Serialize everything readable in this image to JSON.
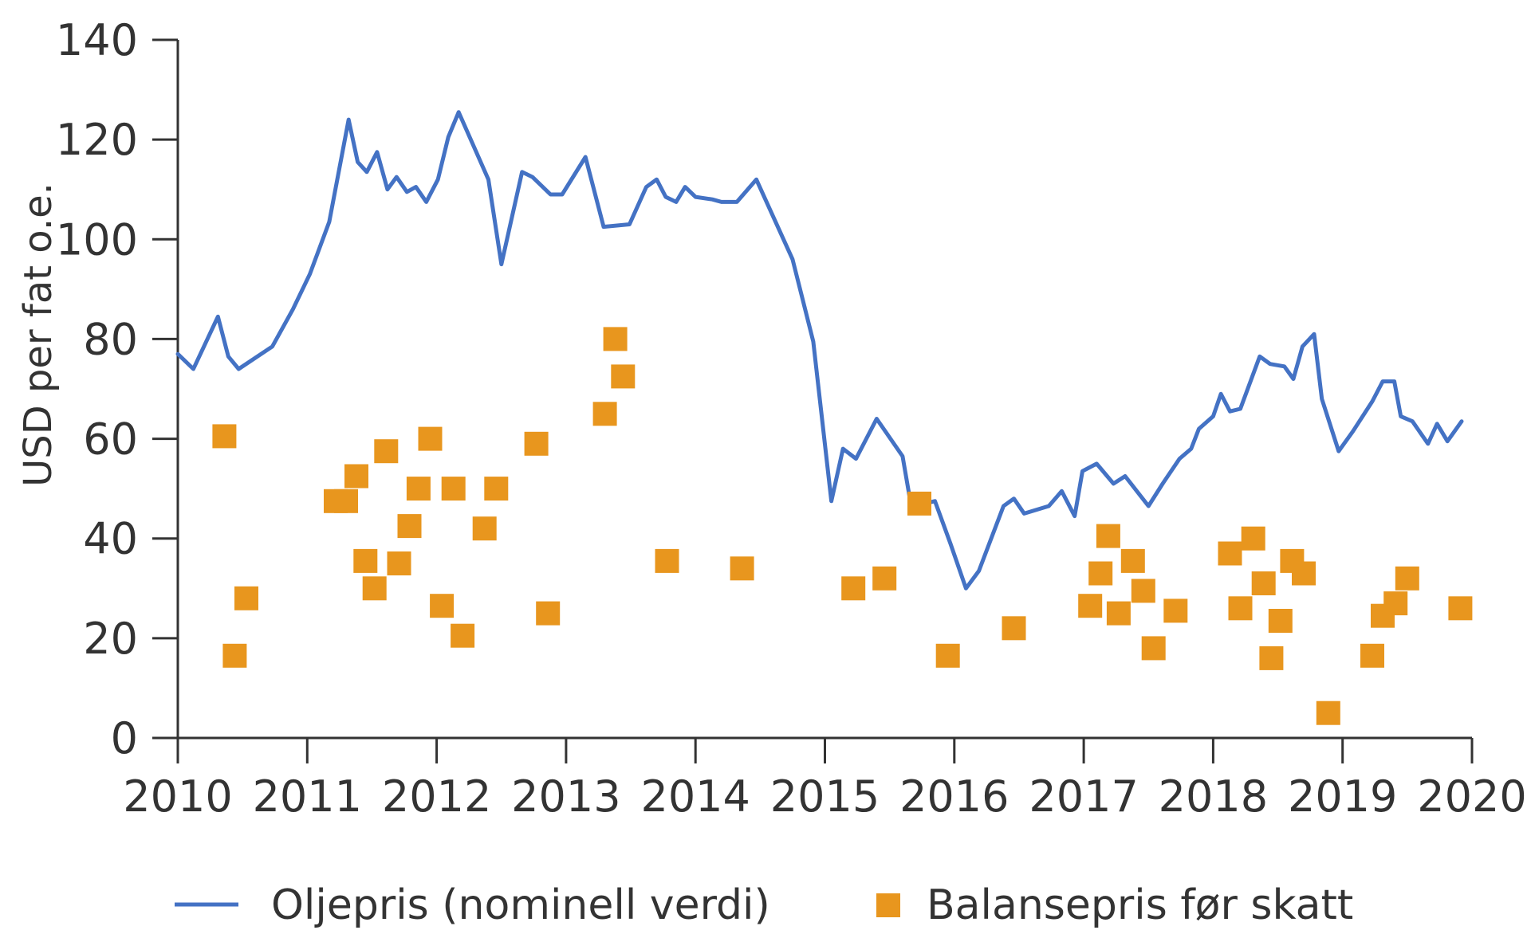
{
  "chart_data": {
    "type": "line+scatter",
    "title": "",
    "xlabel": "",
    "ylabel": "USD per fat o.e.",
    "xlim": [
      2010,
      2020
    ],
    "ylim": [
      0,
      140
    ],
    "grid": false,
    "legend_position": "bottom",
    "x_ticks": [
      "2010",
      "2011",
      "2012",
      "2013",
      "2014",
      "2015",
      "2016",
      "2017",
      "2018",
      "2019",
      "2020"
    ],
    "y_ticks": [
      "0",
      "20",
      "40",
      "60",
      "80",
      "100",
      "120",
      "140"
    ],
    "colors": {
      "line": "#4472c4",
      "markers": "#e8961e",
      "axis": "#333333"
    },
    "series": [
      {
        "name": "Oljepris (nominell verdi)",
        "type": "line",
        "points": [
          [
            2010.0,
            77
          ],
          [
            2010.12,
            74
          ],
          [
            2010.31,
            84.5
          ],
          [
            2010.39,
            76.5
          ],
          [
            2010.47,
            74
          ],
          [
            2010.73,
            78.5
          ],
          [
            2010.89,
            86
          ],
          [
            2011.02,
            93
          ],
          [
            2011.17,
            103.5
          ],
          [
            2011.32,
            124
          ],
          [
            2011.39,
            115.5
          ],
          [
            2011.46,
            113.5
          ],
          [
            2011.54,
            117.5
          ],
          [
            2011.62,
            110
          ],
          [
            2011.69,
            112.5
          ],
          [
            2011.77,
            109.5
          ],
          [
            2011.84,
            110.5
          ],
          [
            2011.92,
            107.5
          ],
          [
            2012.01,
            112
          ],
          [
            2012.09,
            120.5
          ],
          [
            2012.17,
            125.5
          ],
          [
            2012.4,
            112
          ],
          [
            2012.5,
            95
          ],
          [
            2012.66,
            113.5
          ],
          [
            2012.74,
            112.5
          ],
          [
            2012.88,
            109
          ],
          [
            2012.97,
            109
          ],
          [
            2013.15,
            116.5
          ],
          [
            2013.29,
            102.5
          ],
          [
            2013.49,
            103
          ],
          [
            2013.62,
            110.5
          ],
          [
            2013.7,
            112
          ],
          [
            2013.77,
            108.5
          ],
          [
            2013.85,
            107.5
          ],
          [
            2013.92,
            110.5
          ],
          [
            2014.0,
            108.5
          ],
          [
            2014.13,
            108
          ],
          [
            2014.2,
            107.5
          ],
          [
            2014.32,
            107.5
          ],
          [
            2014.47,
            112
          ],
          [
            2014.75,
            96
          ],
          [
            2014.91,
            79.5
          ],
          [
            2015.05,
            47.5
          ],
          [
            2015.14,
            58
          ],
          [
            2015.24,
            56
          ],
          [
            2015.4,
            64
          ],
          [
            2015.6,
            56.5
          ],
          [
            2015.66,
            47.5
          ],
          [
            2015.77,
            47
          ],
          [
            2015.85,
            47.5
          ],
          [
            2015.97,
            39
          ],
          [
            2016.09,
            30
          ],
          [
            2016.19,
            33.5
          ],
          [
            2016.38,
            46.5
          ],
          [
            2016.46,
            48
          ],
          [
            2016.54,
            45
          ],
          [
            2016.73,
            46.5
          ],
          [
            2016.83,
            49.5
          ],
          [
            2016.93,
            44.5
          ],
          [
            2016.99,
            53.5
          ],
          [
            2017.1,
            55
          ],
          [
            2017.23,
            51
          ],
          [
            2017.32,
            52.5
          ],
          [
            2017.5,
            46.5
          ],
          [
            2017.61,
            51
          ],
          [
            2017.74,
            56
          ],
          [
            2017.83,
            58
          ],
          [
            2017.89,
            62
          ],
          [
            2018.0,
            64.5
          ],
          [
            2018.06,
            69
          ],
          [
            2018.13,
            65.5
          ],
          [
            2018.21,
            66
          ],
          [
            2018.36,
            76.5
          ],
          [
            2018.44,
            75
          ],
          [
            2018.55,
            74.5
          ],
          [
            2018.62,
            72
          ],
          [
            2018.69,
            78.5
          ],
          [
            2018.78,
            81
          ],
          [
            2018.84,
            68
          ],
          [
            2018.97,
            57.5
          ],
          [
            2019.08,
            61.5
          ],
          [
            2019.23,
            67.5
          ],
          [
            2019.31,
            71.5
          ],
          [
            2019.4,
            71.5
          ],
          [
            2019.45,
            64.5
          ],
          [
            2019.54,
            63.5
          ],
          [
            2019.66,
            59
          ],
          [
            2019.73,
            63
          ],
          [
            2019.81,
            59.5
          ],
          [
            2019.92,
            63.5
          ]
        ]
      },
      {
        "name": "Balansepris før skatt",
        "type": "scatter",
        "points": [
          [
            2010.36,
            60.5
          ],
          [
            2010.44,
            16.5
          ],
          [
            2010.53,
            28
          ],
          [
            2011.22,
            47.5
          ],
          [
            2011.3,
            47.5
          ],
          [
            2011.38,
            52.5
          ],
          [
            2011.45,
            35.5
          ],
          [
            2011.52,
            30
          ],
          [
            2011.61,
            57.5
          ],
          [
            2011.71,
            35
          ],
          [
            2011.79,
            42.5
          ],
          [
            2011.86,
            50
          ],
          [
            2011.95,
            60
          ],
          [
            2012.04,
            26.5
          ],
          [
            2012.13,
            50
          ],
          [
            2012.2,
            20.5
          ],
          [
            2012.37,
            42
          ],
          [
            2012.46,
            50
          ],
          [
            2012.77,
            59
          ],
          [
            2012.86,
            25
          ],
          [
            2013.3,
            65
          ],
          [
            2013.38,
            80
          ],
          [
            2013.44,
            72.5
          ],
          [
            2013.78,
            35.5
          ],
          [
            2014.36,
            34
          ],
          [
            2015.22,
            30
          ],
          [
            2015.46,
            32
          ],
          [
            2015.73,
            47
          ],
          [
            2015.95,
            16.5
          ],
          [
            2016.46,
            22
          ],
          [
            2017.05,
            26.5
          ],
          [
            2017.13,
            33
          ],
          [
            2017.19,
            40.5
          ],
          [
            2017.27,
            25
          ],
          [
            2017.38,
            35.5
          ],
          [
            2017.46,
            29.5
          ],
          [
            2017.54,
            18
          ],
          [
            2017.71,
            25.5
          ],
          [
            2018.13,
            37
          ],
          [
            2018.21,
            26
          ],
          [
            2018.31,
            40
          ],
          [
            2018.39,
            31
          ],
          [
            2018.45,
            16
          ],
          [
            2018.52,
            23.5
          ],
          [
            2018.61,
            35.5
          ],
          [
            2018.7,
            33
          ],
          [
            2018.89,
            5
          ],
          [
            2019.23,
            16.5
          ],
          [
            2019.31,
            24.5
          ],
          [
            2019.41,
            27
          ],
          [
            2019.5,
            32
          ],
          [
            2019.91,
            26
          ]
        ]
      }
    ]
  }
}
